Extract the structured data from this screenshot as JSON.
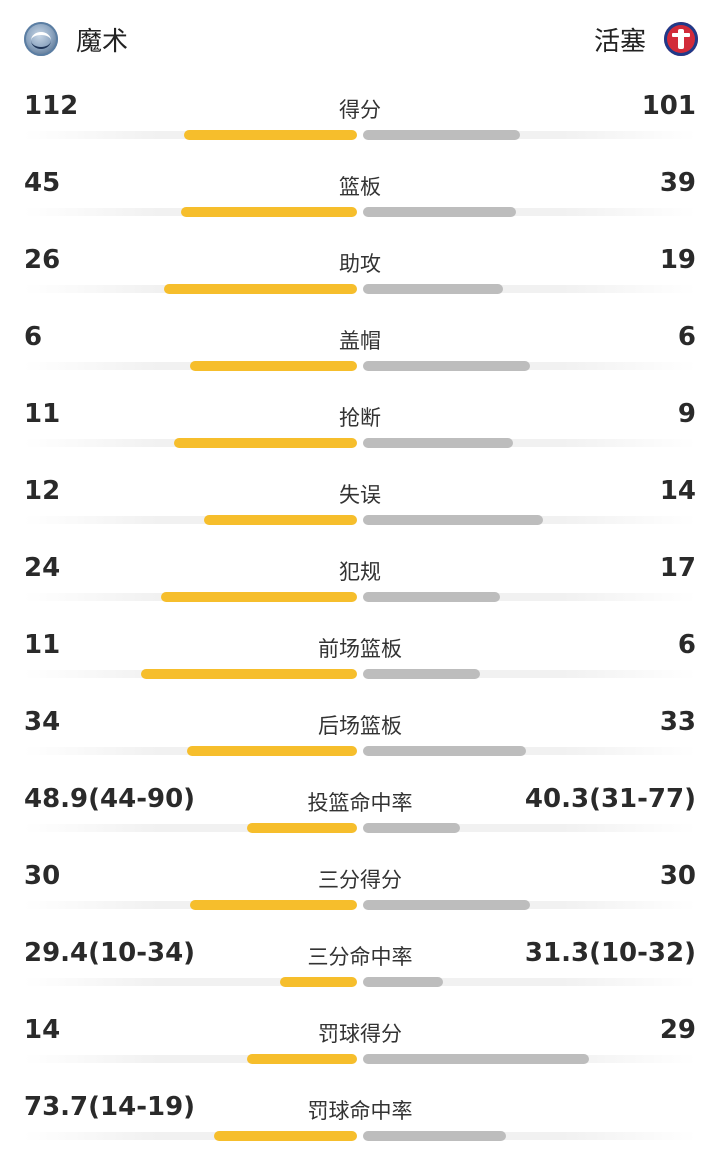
{
  "header": {
    "home_team": "魔术",
    "away_team": "活塞",
    "home_logo_icon": "orlando-magic-logo-icon",
    "away_logo_icon": "detroit-pistons-logo-icon"
  },
  "colors": {
    "home_bar": "#f6be2c",
    "away_bar": "#bdbdbd",
    "track": "#f1f1f1"
  },
  "stats": [
    {
      "label": "得分",
      "left": "112",
      "right": "101",
      "left_pct": 0.52,
      "right_pct": 0.47
    },
    {
      "label": "篮板",
      "left": "45",
      "right": "39",
      "left_pct": 0.53,
      "right_pct": 0.46
    },
    {
      "label": "助攻",
      "left": "26",
      "right": "19",
      "left_pct": 0.58,
      "right_pct": 0.42
    },
    {
      "label": "盖帽",
      "left": "6",
      "right": "6",
      "left_pct": 0.5,
      "right_pct": 0.5
    },
    {
      "label": "抢断",
      "left": "11",
      "right": "9",
      "left_pct": 0.55,
      "right_pct": 0.45
    },
    {
      "label": "失误",
      "left": "12",
      "right": "14",
      "left_pct": 0.46,
      "right_pct": 0.54
    },
    {
      "label": "犯规",
      "left": "24",
      "right": "17",
      "left_pct": 0.59,
      "right_pct": 0.41
    },
    {
      "label": "前场篮板",
      "left": "11",
      "right": "6",
      "left_pct": 0.65,
      "right_pct": 0.35
    },
    {
      "label": "后场篮板",
      "left": "34",
      "right": "33",
      "left_pct": 0.51,
      "right_pct": 0.49
    },
    {
      "label": "投篮命中率",
      "left": "48.9(44-90)",
      "right": "40.3(31-77)",
      "left_pct": 0.33,
      "right_pct": 0.29
    },
    {
      "label": "三分得分",
      "left": "30",
      "right": "30",
      "left_pct": 0.5,
      "right_pct": 0.5
    },
    {
      "label": "三分命中率",
      "left": "29.4(10-34)",
      "right": "31.3(10-32)",
      "left_pct": 0.23,
      "right_pct": 0.24
    },
    {
      "label": "罚球得分",
      "left": "14",
      "right": "29",
      "left_pct": 0.33,
      "right_pct": 0.68
    },
    {
      "label": "罚球命中率",
      "left": "73.7(14-19)",
      "right": "",
      "left_pct": 0.43,
      "right_pct": 0.43
    }
  ]
}
